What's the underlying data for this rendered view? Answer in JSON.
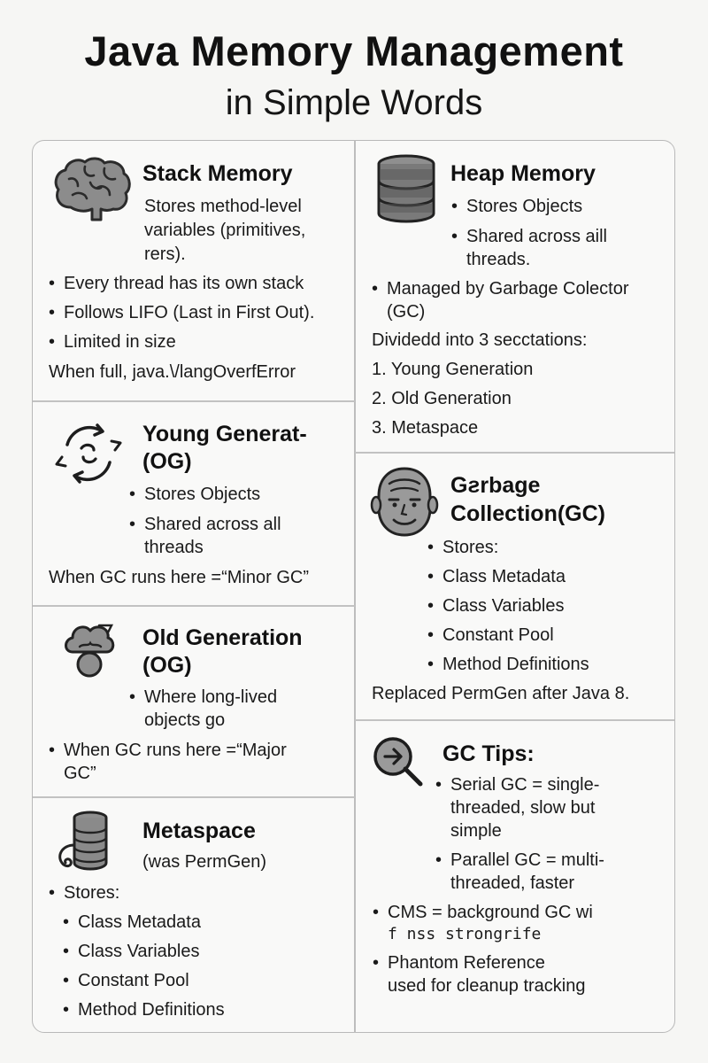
{
  "header": {
    "title": "Java Memory Management",
    "subtitle": "in Simple Words"
  },
  "stack": {
    "icon": "brain-icon",
    "heading": "Stack Memory",
    "desc_1": "Stores method-level",
    "desc_2": "variables (primitives,",
    "desc_3": "rers).",
    "bullets": [
      "Every thread has its own stack",
      "Follows LIFO (Last in First Out).",
      "Limited in size"
    ],
    "note": "When full, java.\\/langOverfError"
  },
  "heap": {
    "icon": "database-icon",
    "heading": "Heap Memory",
    "bullet_1": "Stores Objects",
    "bullet_2a": "Shared across aill",
    "bullet_2b": "threads.",
    "managed_a": "Managed by Garbage Colector",
    "managed_b": "(GC)",
    "divided": "Dividedd into 3 secctations:",
    "sections": [
      "1. Young Generation",
      "2. Old Generation",
      "3. Metaspace"
    ]
  },
  "young": {
    "icon": "cycle-arrows-icon",
    "heading_1": "Young Generat-",
    "heading_2": "(OG)",
    "bullet_1": "Stores Objects",
    "bullet_2a": "Shared across all",
    "bullet_2b": "threads",
    "note": "When GC runs here =“Minor GC”"
  },
  "gc": {
    "icon": "face-icon",
    "heading_1": "Gƨrbage",
    "heading_2": "Collection(GC)",
    "bullets": [
      "Stores:",
      "Class Metadata",
      "Class Variables",
      "Constant Pool",
      "Method Definitions"
    ],
    "note": "Replaced PermGen after Java 8."
  },
  "old": {
    "icon": "cloud-person-icon",
    "heading_1": "Old Generation",
    "heading_2": "(OG)",
    "bullet_1a": "Where long-lived",
    "bullet_1b": "objects go",
    "bullet_2a": "When GC runs here =“Major",
    "bullet_2b": "GC”"
  },
  "tips": {
    "icon": "magnifier-arrow-icon",
    "heading": "GC Tips:",
    "serial_a": "Serial GC = single-",
    "serial_b": "threaded, slow but",
    "serial_c": "simple",
    "parallel_a": "Parallel GC = multi-",
    "parallel_b": "threaded, faster",
    "cms_a": "CMS = background GC wi",
    "cms_b": "f nss strongrife",
    "phantom_a": "Phantom Reference",
    "phantom_b": "used for cleanup  tracking"
  },
  "meta": {
    "icon": "database-scroll-icon",
    "heading": "Metaspace",
    "sub": "(was PermGen)",
    "stores": "Stores:",
    "items": [
      "Class Metadata",
      "Class Variables",
      "Constant Pool",
      "Method Definitions"
    ]
  }
}
